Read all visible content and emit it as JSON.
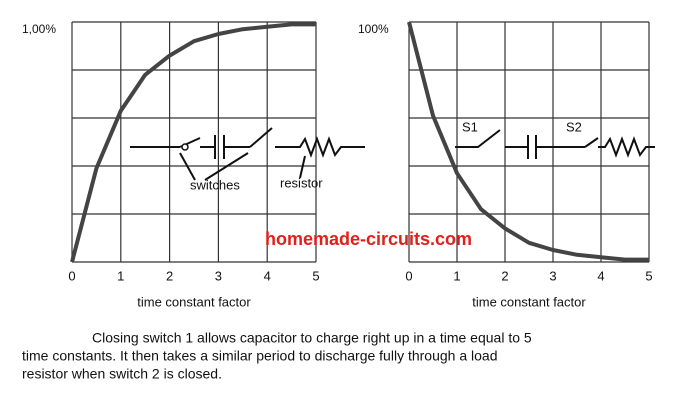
{
  "chart_data": [
    {
      "type": "line",
      "x": [
        0,
        0.5,
        1,
        1.5,
        2,
        2.5,
        3,
        3.5,
        4,
        4.5,
        5
      ],
      "values": [
        0,
        39,
        63,
        78,
        86,
        92,
        95,
        97,
        98,
        99,
        99
      ],
      "color": "#444444",
      "xlabel": "time constant factor",
      "xlim": [
        0,
        5
      ],
      "xticks": [
        0,
        1,
        2,
        3,
        4,
        5
      ],
      "ylim": [
        0,
        100
      ],
      "yticks": [
        {
          "value": 100,
          "label": "1,00%"
        }
      ],
      "ygrid": [
        0,
        20,
        40,
        60,
        80,
        100
      ],
      "grid": true,
      "annotations": [
        "switches",
        "resistor"
      ]
    },
    {
      "type": "line",
      "x": [
        0,
        0.5,
        1,
        1.5,
        2,
        2.5,
        3,
        3.5,
        4,
        4.5,
        5
      ],
      "values": [
        100,
        61,
        37,
        22,
        14,
        8,
        5,
        3,
        2,
        1,
        1
      ],
      "color": "#444444",
      "xlabel": "time constant factor",
      "xlim": [
        0,
        5
      ],
      "xticks": [
        0,
        1,
        2,
        3,
        4,
        5
      ],
      "ylim": [
        0,
        100
      ],
      "yticks": [
        {
          "value": 100,
          "label": "100%"
        }
      ],
      "ygrid": [
        0,
        20,
        40,
        60,
        80,
        100
      ],
      "grid": true,
      "annotations": [
        "S1",
        "S2"
      ]
    }
  ],
  "watermark": "homemade-circuits.com",
  "caption": [
    "Closing switch 1 allows capacitor to charge right up in a time equal to 5",
    "time constants. It then takes a similar period to discharge fully through a load",
    "resistor when switch 2 is closed."
  ]
}
